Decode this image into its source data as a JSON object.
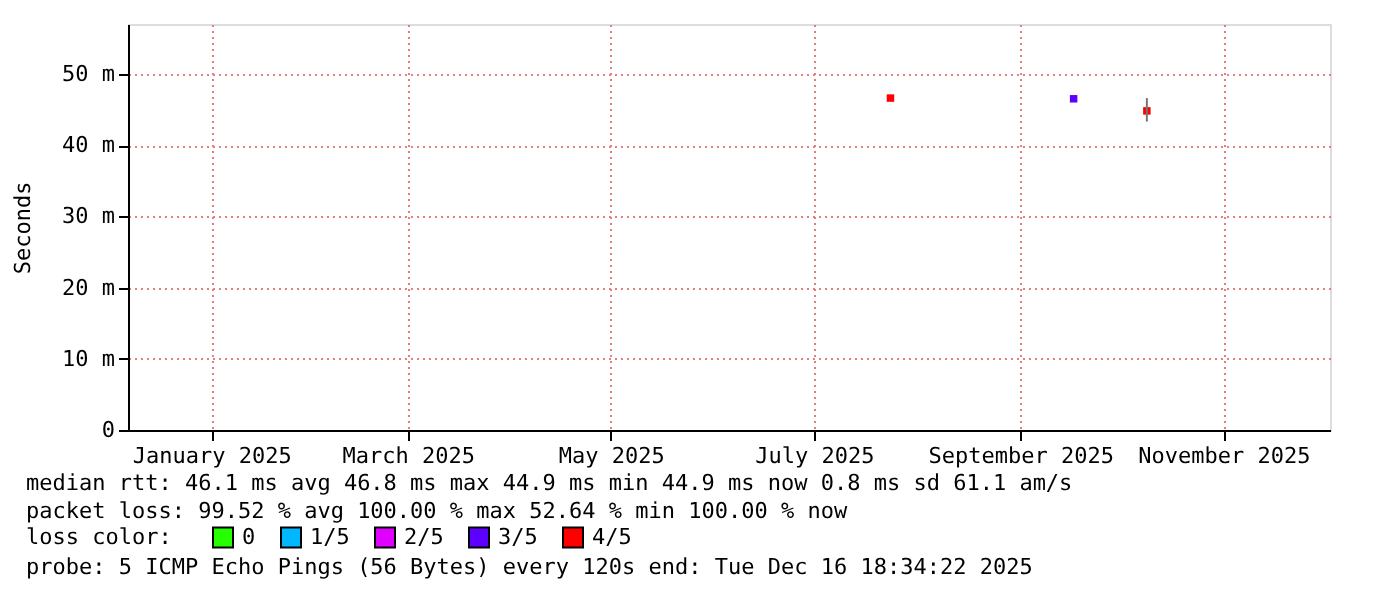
{
  "chart_data": {
    "type": "scatter",
    "ylabel": "Seconds",
    "x": [
      "2025-07-24",
      "2025-09-17",
      "2025-10-09"
    ],
    "xlim": [
      "2024-12-07",
      "2025-12-03"
    ],
    "xticks": [
      {
        "value": "2025-01-01",
        "label": "January 2025"
      },
      {
        "value": "2025-03-01",
        "label": "March 2025"
      },
      {
        "value": "2025-05-01",
        "label": "May 2025"
      },
      {
        "value": "2025-07-01",
        "label": "July 2025"
      },
      {
        "value": "2025-09-01",
        "label": "September 2025"
      },
      {
        "value": "2025-11-01",
        "label": "November 2025"
      }
    ],
    "ylim": [
      0,
      57
    ],
    "yticks": [
      0,
      {
        "value": 10,
        "label": "10 m"
      },
      {
        "value": 20,
        "label": "20 m"
      },
      {
        "value": 30,
        "label": "30 m"
      },
      {
        "value": 40,
        "label": "40 m"
      },
      {
        "value": 50,
        "label": "50 m"
      }
    ],
    "legend_title": "loss color:",
    "legend": "bottom",
    "grid": true,
    "marker": "square",
    "series": [
      {
        "name": "0",
        "color": "#26ff00",
        "values": [
          null,
          null,
          null
        ]
      },
      {
        "name": "1/5",
        "color": "#00b8ff",
        "values": [
          null,
          null,
          null
        ]
      },
      {
        "name": "2/5",
        "color": "#e000ff",
        "values": [
          null,
          null,
          null
        ]
      },
      {
        "name": "3/5",
        "color": "#5e00ff",
        "values": [
          null,
          46.5,
          null
        ]
      },
      {
        "name": "4/5",
        "color": "#ff0000",
        "values": [
          46.6,
          null,
          44.8
        ],
        "errors": [
          null,
          null,
          [
            43.3,
            46.6
          ]
        ]
      }
    ],
    "annotations": [
      "median rtt:  46.1 ms avg  46.8 ms max  44.9 ms min  44.9 ms now  0.8 ms sd  61.1   am/s",
      "packet loss: 99.52 % avg  100.00 % max  52.64 % min  100.00 % now",
      "probe:       5 ICMP Echo Pings (56 Bytes) every 120s               end: Tue Dec 16 18:34:22 2025"
    ]
  }
}
